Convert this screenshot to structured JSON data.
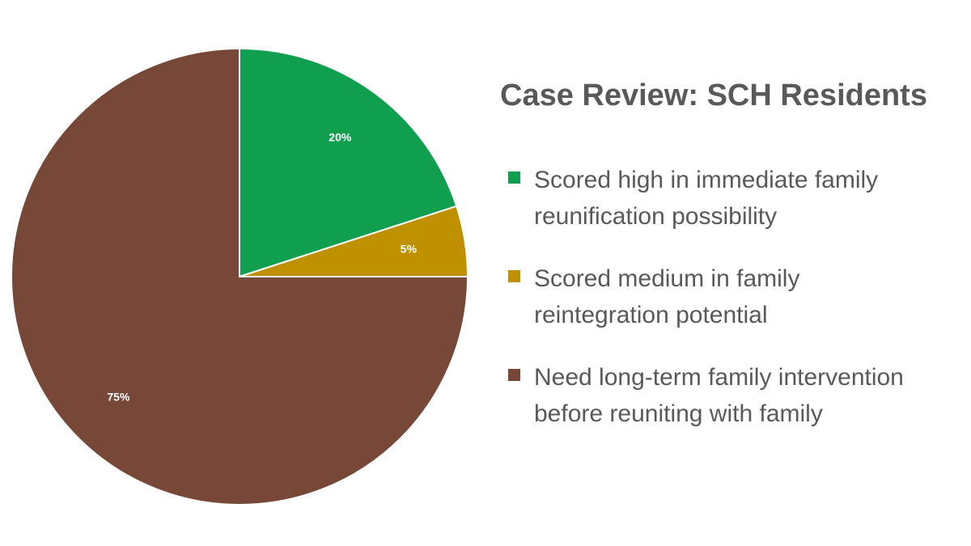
{
  "chart_data": {
    "type": "pie",
    "title": "Case Review: SCH Residents",
    "legend_position": "right",
    "slices": [
      {
        "name": "Scored high in immediate family\nreunification possibility",
        "value": 20,
        "label": "20%",
        "color": "#0f9f4f"
      },
      {
        "name": "Scored medium in family\nreintegration potential",
        "value": 5,
        "label": "5%",
        "color": "#bf9000"
      },
      {
        "name": "Need long-term family intervention\nbefore reuniting with family",
        "value": 75,
        "label": "75%",
        "color": "#774737"
      }
    ]
  }
}
